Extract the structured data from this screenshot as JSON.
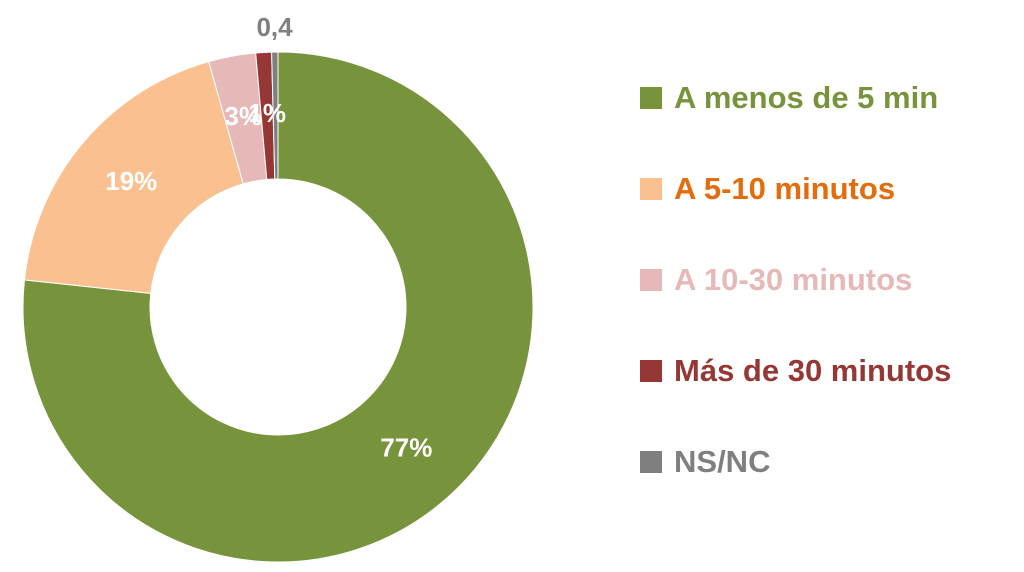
{
  "chart_data": {
    "type": "donut",
    "categories": [
      "A menos de 5 min",
      "A 5-10 minutos",
      "A 10-30 minutos",
      "Más de 30 minutos",
      "NS/NC"
    ],
    "values": [
      77,
      19,
      3,
      1,
      0.4
    ],
    "value_labels": [
      "77%",
      "19%",
      "3%",
      "1%",
      "0,4"
    ],
    "colors": [
      "#77933c",
      "#fac090",
      "#e6b9b8",
      "#953735",
      "#7f7f7f"
    ],
    "text_colors": [
      "#77933c",
      "#e46c0a",
      "#e6b9b8",
      "#953735",
      "#7f7f7f"
    ],
    "legend": "right"
  }
}
